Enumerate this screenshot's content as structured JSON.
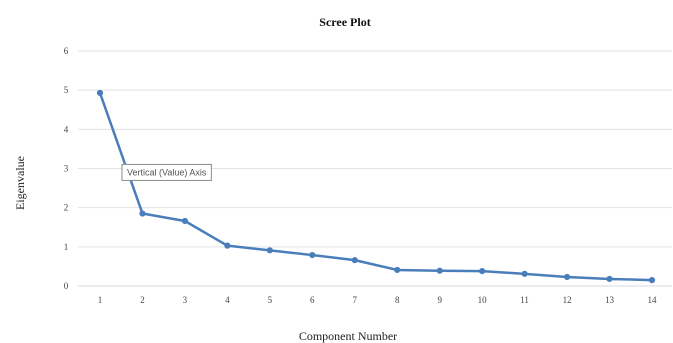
{
  "chart_data": {
    "type": "line",
    "title": "Scree Plot",
    "xlabel": "Component Number",
    "ylabel": "Eigenvalue",
    "ylim": [
      0,
      6
    ],
    "yticks": [
      "0",
      "1",
      "2",
      "3",
      "4",
      "5",
      "6"
    ],
    "categories": [
      "1",
      "2",
      "3",
      "4",
      "5",
      "6",
      "7",
      "8",
      "9",
      "10",
      "11",
      "12",
      "13",
      "14"
    ],
    "values": [
      4.93,
      1.85,
      1.66,
      1.03,
      0.91,
      0.79,
      0.66,
      0.41,
      0.39,
      0.38,
      0.31,
      0.23,
      0.18,
      0.15
    ],
    "grid": true,
    "legend": "none",
    "series_color": "#4a7ebb",
    "tooltip": {
      "text": "Vertical (Value) Axis",
      "at_value": 2.9
    }
  }
}
